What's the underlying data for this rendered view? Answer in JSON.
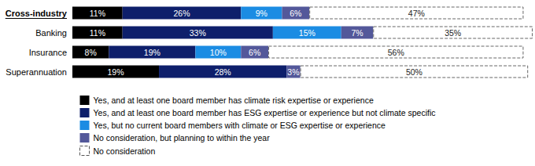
{
  "chart_data": {
    "type": "bar",
    "orientation": "horizontal",
    "stacked": true,
    "data_labels": true,
    "tick_labels": "y",
    "grid": false,
    "legend": "bottom",
    "categories": [
      "Cross-industry",
      "Banking",
      "Insurance",
      "Superannuation"
    ],
    "xlim": [
      0,
      101
    ],
    "series": [
      {
        "name": "Yes, and at least one board member has climate risk expertise or experience",
        "color": "#000000",
        "values": [
          11,
          11,
          8,
          19
        ],
        "value_labels": [
          "11%",
          "11%",
          "8%",
          "19%"
        ]
      },
      {
        "name": "Yes, and at least one board member has ESG expertise or experience but not climate specific",
        "color": "#0e1f6b",
        "values": [
          26,
          33,
          19,
          28
        ],
        "value_labels": [
          "26%",
          "33%",
          "19%",
          "28%"
        ]
      },
      {
        "name": "Yes, but no current board members with climate or ESG expertise or experience",
        "color": "#1b8ce3",
        "values": [
          9,
          15,
          10,
          null
        ],
        "value_labels": [
          "9%",
          "15%",
          "10%",
          null
        ]
      },
      {
        "name": "No consideration, but planning to within the year",
        "color": "#53589a",
        "values": [
          6,
          7,
          6,
          3
        ],
        "value_labels": [
          "6%",
          "7%",
          "6%",
          "3%"
        ]
      },
      {
        "name": "No consideration",
        "color": "#ffffff",
        "values": [
          47,
          35,
          56,
          50
        ],
        "value_labels": [
          "47%",
          "35%",
          "56%",
          "50%"
        ]
      }
    ]
  }
}
